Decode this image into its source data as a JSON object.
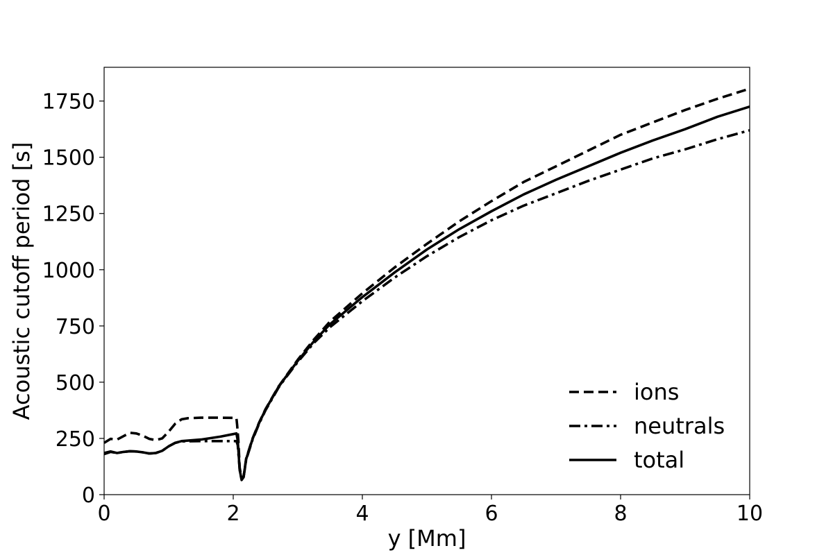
{
  "chart_data": {
    "type": "line",
    "title": "",
    "xlabel": "y [Mm]",
    "ylabel": "Acoustic cutoff period [s]",
    "xlim": [
      0,
      10
    ],
    "ylim": [
      0,
      1900
    ],
    "xticks": [
      0,
      2,
      4,
      6,
      8,
      10
    ],
    "yticks": [
      0,
      250,
      500,
      750,
      1000,
      1250,
      1500,
      1750
    ],
    "grid": false,
    "legend_position": "lower-right",
    "line_color": "#000000",
    "series": [
      {
        "name": "ions",
        "style": "dashed",
        "points": [
          [
            0.0,
            230
          ],
          [
            0.1,
            248
          ],
          [
            0.2,
            245
          ],
          [
            0.3,
            260
          ],
          [
            0.4,
            275
          ],
          [
            0.5,
            272
          ],
          [
            0.6,
            262
          ],
          [
            0.7,
            248
          ],
          [
            0.8,
            242
          ],
          [
            0.9,
            250
          ],
          [
            1.0,
            280
          ],
          [
            1.1,
            315
          ],
          [
            1.2,
            335
          ],
          [
            1.3,
            340
          ],
          [
            1.5,
            342
          ],
          [
            1.8,
            342
          ],
          [
            2.05,
            341
          ],
          [
            2.06,
            310
          ],
          [
            2.08,
            240
          ],
          [
            2.1,
            120
          ],
          [
            2.13,
            70
          ],
          [
            2.16,
            80
          ],
          [
            2.2,
            160
          ],
          [
            2.3,
            250
          ],
          [
            2.4,
            320
          ],
          [
            2.5,
            380
          ],
          [
            2.6,
            430
          ],
          [
            2.7,
            480
          ],
          [
            2.8,
            520
          ],
          [
            3.0,
            600
          ],
          [
            3.25,
            690
          ],
          [
            3.5,
            770
          ],
          [
            4.0,
            895
          ],
          [
            4.5,
            1010
          ],
          [
            5.0,
            1115
          ],
          [
            5.5,
            1215
          ],
          [
            6.0,
            1305
          ],
          [
            6.5,
            1390
          ],
          [
            7.0,
            1460
          ],
          [
            7.5,
            1530
          ],
          [
            8.0,
            1600
          ],
          [
            8.5,
            1655
          ],
          [
            9.0,
            1710
          ],
          [
            9.5,
            1760
          ],
          [
            10.0,
            1805
          ]
        ]
      },
      {
        "name": "neutrals",
        "style": "dashdot",
        "points": [
          [
            0.0,
            180
          ],
          [
            0.1,
            190
          ],
          [
            0.2,
            185
          ],
          [
            0.3,
            190
          ],
          [
            0.4,
            193
          ],
          [
            0.5,
            192
          ],
          [
            0.6,
            188
          ],
          [
            0.7,
            183
          ],
          [
            0.8,
            185
          ],
          [
            0.9,
            195
          ],
          [
            1.0,
            215
          ],
          [
            1.1,
            230
          ],
          [
            1.2,
            237
          ],
          [
            1.5,
            238
          ],
          [
            1.8,
            238
          ],
          [
            2.05,
            238
          ],
          [
            2.07,
            220
          ],
          [
            2.1,
            110
          ],
          [
            2.13,
            65
          ],
          [
            2.16,
            78
          ],
          [
            2.2,
            155
          ],
          [
            2.3,
            245
          ],
          [
            2.4,
            315
          ],
          [
            2.5,
            375
          ],
          [
            2.6,
            425
          ],
          [
            2.7,
            475
          ],
          [
            2.8,
            515
          ],
          [
            3.0,
            590
          ],
          [
            3.25,
            675
          ],
          [
            3.5,
            745
          ],
          [
            4.0,
            860
          ],
          [
            4.5,
            965
          ],
          [
            5.0,
            1060
          ],
          [
            5.5,
            1145
          ],
          [
            6.0,
            1220
          ],
          [
            6.5,
            1285
          ],
          [
            7.0,
            1340
          ],
          [
            7.5,
            1395
          ],
          [
            8.0,
            1445
          ],
          [
            8.5,
            1495
          ],
          [
            9.0,
            1535
          ],
          [
            9.5,
            1580
          ],
          [
            10.0,
            1620
          ]
        ]
      },
      {
        "name": "total",
        "style": "solid",
        "points": [
          [
            0.0,
            185
          ],
          [
            0.1,
            192
          ],
          [
            0.2,
            185
          ],
          [
            0.3,
            190
          ],
          [
            0.4,
            193
          ],
          [
            0.5,
            192
          ],
          [
            0.6,
            188
          ],
          [
            0.7,
            183
          ],
          [
            0.8,
            185
          ],
          [
            0.9,
            195
          ],
          [
            1.0,
            215
          ],
          [
            1.1,
            230
          ],
          [
            1.2,
            238
          ],
          [
            1.5,
            245
          ],
          [
            1.8,
            258
          ],
          [
            2.05,
            272
          ],
          [
            2.07,
            240
          ],
          [
            2.1,
            110
          ],
          [
            2.13,
            65
          ],
          [
            2.16,
            78
          ],
          [
            2.2,
            158
          ],
          [
            2.3,
            248
          ],
          [
            2.4,
            318
          ],
          [
            2.5,
            378
          ],
          [
            2.6,
            428
          ],
          [
            2.7,
            478
          ],
          [
            2.8,
            518
          ],
          [
            3.0,
            595
          ],
          [
            3.25,
            682
          ],
          [
            3.5,
            758
          ],
          [
            4.0,
            878
          ],
          [
            4.5,
            988
          ],
          [
            5.0,
            1090
          ],
          [
            5.5,
            1180
          ],
          [
            6.0,
            1260
          ],
          [
            6.5,
            1335
          ],
          [
            7.0,
            1400
          ],
          [
            7.5,
            1460
          ],
          [
            8.0,
            1520
          ],
          [
            8.5,
            1575
          ],
          [
            9.0,
            1625
          ],
          [
            9.5,
            1680
          ],
          [
            10.0,
            1725
          ]
        ]
      }
    ]
  }
}
